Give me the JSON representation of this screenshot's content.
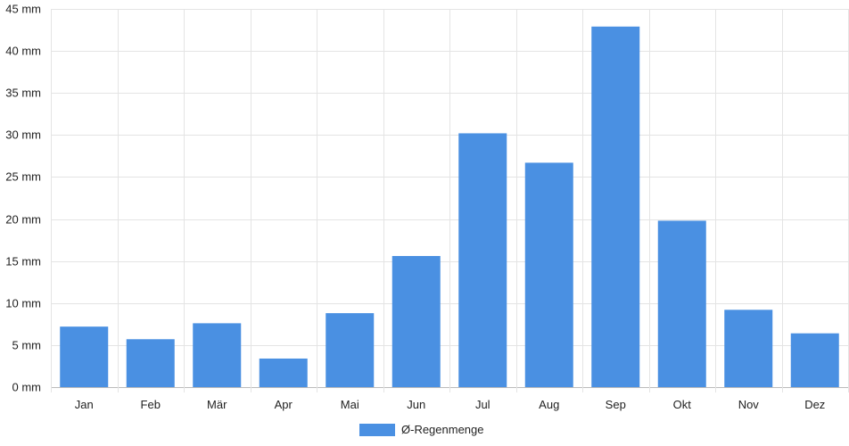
{
  "chart_data": {
    "type": "bar",
    "title": "",
    "xlabel": "",
    "ylabel": "",
    "y_unit": "mm",
    "ylim": [
      0,
      45
    ],
    "y_ticks": [
      0,
      5,
      10,
      15,
      20,
      25,
      30,
      35,
      40,
      45
    ],
    "y_tick_labels": [
      "0 mm",
      "5 mm",
      "10 mm",
      "15 mm",
      "20 mm",
      "25 mm",
      "30 mm",
      "35 mm",
      "40 mm",
      "45 mm"
    ],
    "grid": true,
    "legend_position": "bottom",
    "categories": [
      "Jan",
      "Feb",
      "Mär",
      "Apr",
      "Mai",
      "Jun",
      "Jul",
      "Aug",
      "Sep",
      "Okt",
      "Nov",
      "Dez"
    ],
    "series": [
      {
        "name": "Ø-Regenmenge",
        "color": "#4a90e2",
        "values": [
          7.2,
          5.7,
          7.6,
          3.4,
          8.8,
          15.6,
          30.2,
          26.7,
          42.9,
          19.8,
          9.2,
          6.4
        ]
      }
    ]
  }
}
